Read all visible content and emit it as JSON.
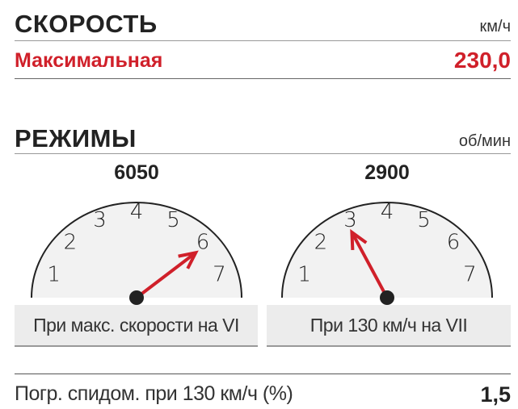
{
  "speed": {
    "title": "СКОРОСТЬ",
    "unit": "км/ч",
    "max_label": "Максимальная",
    "max_value": "230,0"
  },
  "modes": {
    "title": "РЕЖИМЫ",
    "unit": "об/мин",
    "gauges": [
      {
        "rpm": "6050",
        "needle_value": 6.05,
        "caption": "При макс. скорости на VI"
      },
      {
        "rpm": "2900",
        "needle_value": 2.9,
        "caption": "При 130 км/ч на VII"
      }
    ],
    "scale_labels": [
      "1",
      "2",
      "3",
      "4",
      "5",
      "6",
      "7"
    ]
  },
  "speedometer_error": {
    "label": "Погр. спидом. при 130 км/ч (%)",
    "value": "1,5"
  },
  "colors": {
    "accent": "#d0202a",
    "text": "#222222",
    "caption_bg": "#ececec"
  }
}
